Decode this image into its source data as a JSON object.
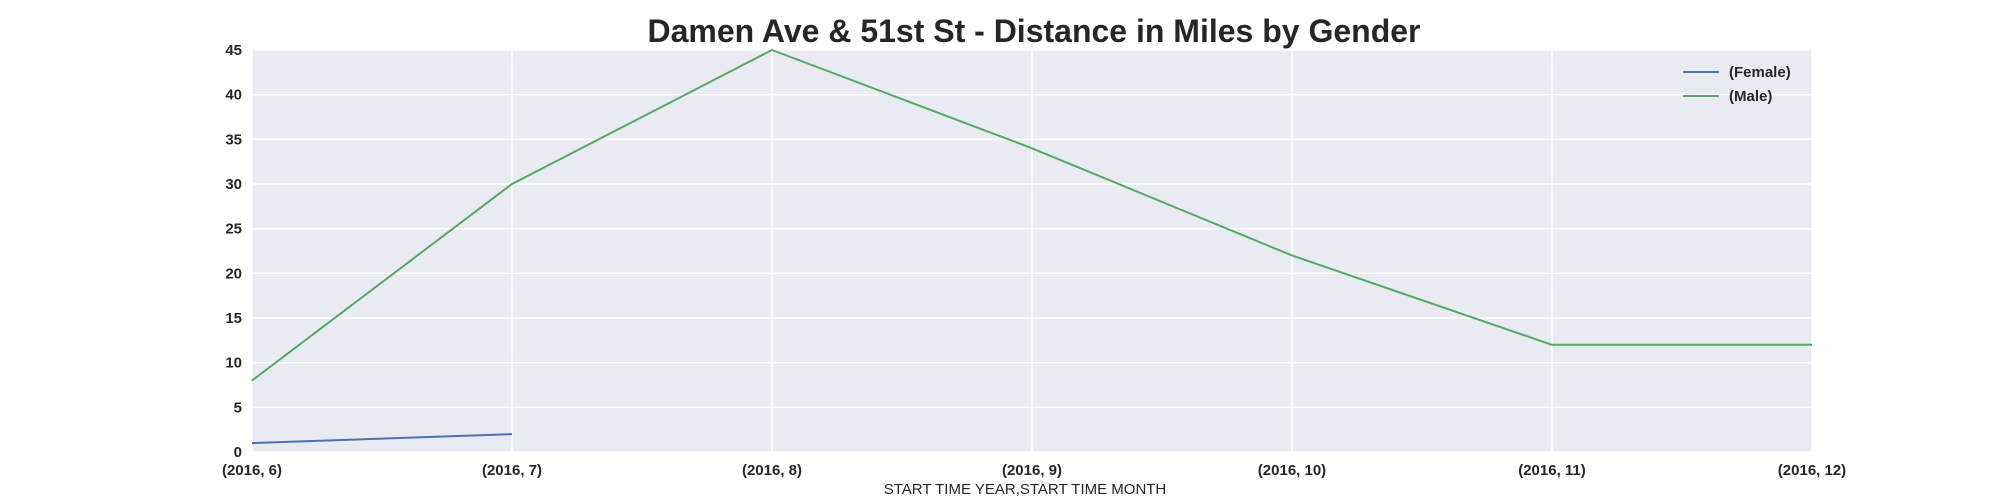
{
  "chart_data": {
    "type": "line",
    "title": "Damen Ave & 51st St - Distance in Miles by Gender",
    "xlabel": "START TIME YEAR,START TIME MONTH",
    "ylabel": "",
    "categories": [
      "(2016, 6)",
      "(2016, 7)",
      "(2016, 8)",
      "(2016, 9)",
      "(2016, 10)",
      "(2016, 11)",
      "(2016, 12)"
    ],
    "yticks": [
      0,
      5,
      10,
      15,
      20,
      25,
      30,
      35,
      40,
      45
    ],
    "ylim": [
      0,
      45
    ],
    "grid": true,
    "legend": "top-right",
    "background": "#EAEAF2",
    "gridColor": "#FFFFFF",
    "series": [
      {
        "name": "(Female)",
        "color": "#4C72B0",
        "values": [
          1,
          2,
          null,
          null,
          null,
          null,
          null
        ]
      },
      {
        "name": "(Male)",
        "color": "#55A868",
        "values": [
          8,
          30,
          45,
          34,
          22,
          12,
          12
        ]
      }
    ]
  }
}
